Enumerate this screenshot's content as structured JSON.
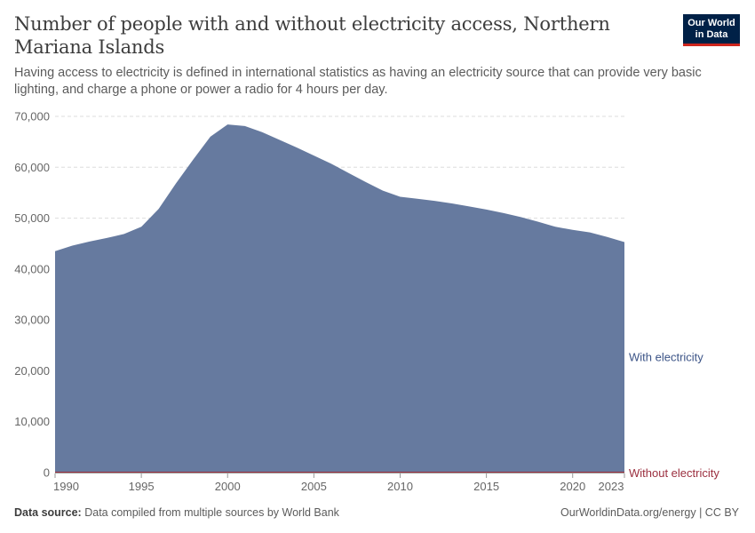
{
  "header": {
    "title": "Number of people with and without electricity access, Northern Mariana Islands",
    "subtitle": "Having access to electricity is defined in international statistics as having an electricity source that can provide very basic lighting, and charge a phone or power a radio for 4 hours per day.",
    "logo_line1": "Our World",
    "logo_line2": "in Data"
  },
  "footer": {
    "source_label": "Data source:",
    "source_text": "Data compiled from multiple sources by World Bank",
    "credit": "OurWorldinData.org/energy | CC BY"
  },
  "colors": {
    "with": "#667a9f",
    "with_label": "#3c5487",
    "without": "#9b2f3f"
  },
  "chart_data": {
    "type": "area",
    "stacked": true,
    "x_ticks": [
      "1990",
      "1995",
      "2000",
      "2005",
      "2010",
      "2015",
      "2020",
      "2023"
    ],
    "y_ticks": [
      "0",
      "10,000",
      "20,000",
      "30,000",
      "40,000",
      "50,000",
      "60,000",
      "70,000"
    ],
    "xlim": [
      1990,
      2023
    ],
    "ylim": [
      0,
      70000
    ],
    "grid": "horizontal-dashed",
    "x": [
      1990,
      1991,
      1992,
      1993,
      1994,
      1995,
      1996,
      1997,
      1998,
      1999,
      2000,
      2001,
      2002,
      2003,
      2004,
      2005,
      2006,
      2007,
      2008,
      2009,
      2010,
      2011,
      2012,
      2013,
      2014,
      2015,
      2016,
      2017,
      2018,
      2019,
      2020,
      2021,
      2022,
      2023
    ],
    "series": [
      {
        "name": "With electricity",
        "values": [
          43500,
          44600,
          45400,
          46100,
          46900,
          48300,
          51800,
          56800,
          61500,
          66000,
          68400,
          68100,
          66900,
          65400,
          63900,
          62300,
          60700,
          58900,
          57100,
          55400,
          54200,
          53800,
          53400,
          52900,
          52300,
          51700,
          51000,
          50200,
          49300,
          48300,
          47700,
          47200,
          46300,
          45300
        ]
      },
      {
        "name": "Without electricity",
        "values": [
          0,
          0,
          0,
          0,
          0,
          0,
          0,
          0,
          0,
          0,
          0,
          0,
          0,
          0,
          0,
          0,
          0,
          0,
          0,
          0,
          0,
          0,
          0,
          0,
          0,
          0,
          0,
          0,
          0,
          0,
          0,
          0,
          0,
          0
        ]
      }
    ]
  }
}
